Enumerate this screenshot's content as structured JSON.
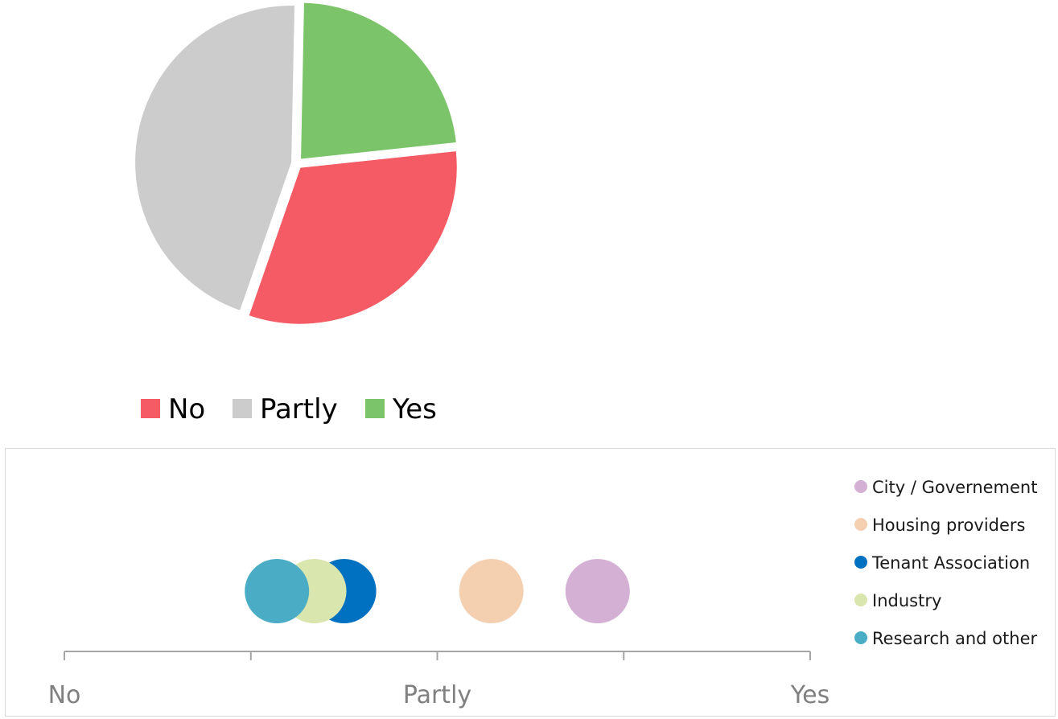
{
  "chart_data": [
    {
      "type": "pie",
      "categories": [
        "No",
        "Partly",
        "Yes"
      ],
      "values": [
        32,
        45,
        23
      ],
      "colors": [
        "#f45b64",
        "#cccccc",
        "#7bc46a"
      ],
      "title": "",
      "legend": "bottom",
      "legend_items": [
        {
          "label": "No",
          "color": "#f45b64"
        },
        {
          "label": "Partly",
          "color": "#cccccc"
        },
        {
          "label": "Yes",
          "color": "#7bc46a"
        }
      ]
    },
    {
      "type": "scatter",
      "title": "",
      "xlim": [
        0,
        4
      ],
      "x_tick_labels": [
        {
          "x": 0,
          "label": "No"
        },
        {
          "x": 2,
          "label": "Partly"
        },
        {
          "x": 4,
          "label": "Yes"
        }
      ],
      "x_ticks": [
        0,
        1,
        2,
        3,
        4
      ],
      "legend": "right",
      "series": [
        {
          "name": "City / Governement",
          "x": 2.86,
          "color": "#d5b0d5"
        },
        {
          "name": "Housing providers",
          "x": 2.29,
          "color": "#f4d0b0"
        },
        {
          "name": "Tenant Association",
          "x": 1.5,
          "color": "#0070c0"
        },
        {
          "name": "Industry",
          "x": 1.34,
          "color": "#d9e6ad"
        },
        {
          "name": "Research and other",
          "x": 1.14,
          "color": "#4bacc6"
        }
      ],
      "draw_order": [
        "City / Governement",
        "Housing providers",
        "Tenant Association",
        "Industry",
        "Research and other"
      ]
    }
  ]
}
